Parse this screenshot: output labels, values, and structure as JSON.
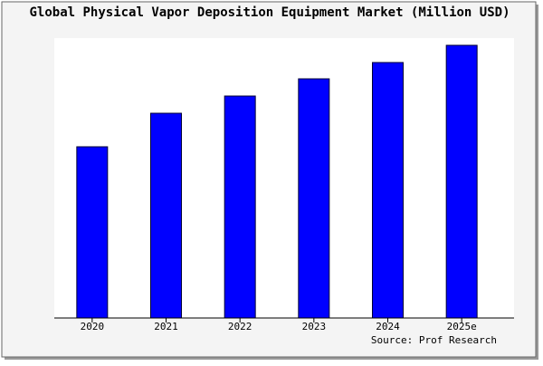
{
  "chart_data": {
    "type": "bar",
    "title": "Global Physical Vapor Deposition Equipment Market (Million USD)",
    "categories": [
      "2020",
      "2021",
      "2022",
      "2023",
      "2024",
      "2025e"
    ],
    "values": [
      189,
      226,
      245,
      264,
      282,
      301
    ],
    "color": "#0000ff",
    "ylim": [
      0,
      309
    ],
    "source": "Source: Prof Research"
  }
}
